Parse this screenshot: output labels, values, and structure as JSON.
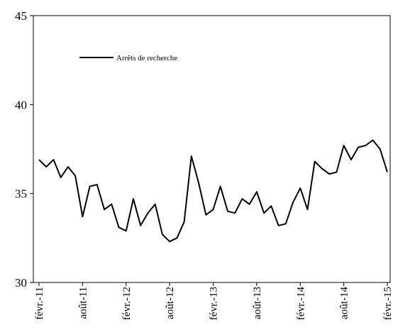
{
  "chart_data": {
    "type": "line",
    "title": "",
    "xlabel": "",
    "ylabel": "",
    "ylim": [
      30,
      45
    ],
    "yticks": [
      "30",
      "35",
      "40",
      "45"
    ],
    "grid": false,
    "legend_position": "top-left",
    "x_tick_labels": [
      "févr.-11",
      "août-11",
      "févr.-12",
      "août-12",
      "févr.-13",
      "août-13",
      "févr.-14",
      "août-14",
      "févr.-15"
    ],
    "x_tick_months": [
      "2011-02",
      "2011-08",
      "2012-02",
      "2012-08",
      "2013-02",
      "2013-08",
      "2014-02",
      "2014-08",
      "2015-02"
    ],
    "x": [
      "2011-02",
      "2011-03",
      "2011-04",
      "2011-05",
      "2011-06",
      "2011-07",
      "2011-08",
      "2011-09",
      "2011-10",
      "2011-11",
      "2011-12",
      "2012-01",
      "2012-02",
      "2012-03",
      "2012-04",
      "2012-05",
      "2012-06",
      "2012-07",
      "2012-08",
      "2012-09",
      "2012-10",
      "2012-11",
      "2012-12",
      "2013-01",
      "2013-02",
      "2013-03",
      "2013-04",
      "2013-05",
      "2013-06",
      "2013-07",
      "2013-08",
      "2013-09",
      "2013-10",
      "2013-11",
      "2013-12",
      "2014-01",
      "2014-02",
      "2014-03",
      "2014-04",
      "2014-05",
      "2014-06",
      "2014-07",
      "2014-08",
      "2014-09",
      "2014-10",
      "2014-11",
      "2014-12",
      "2015-01",
      "2015-02"
    ],
    "series": [
      {
        "name": "Arrêts de recherche",
        "color": "#000000",
        "values": [
          36.9,
          36.5,
          36.9,
          35.9,
          36.5,
          36.0,
          33.7,
          35.4,
          35.5,
          34.1,
          34.4,
          33.1,
          32.9,
          34.7,
          33.2,
          33.9,
          34.4,
          32.7,
          32.3,
          32.5,
          33.4,
          37.1,
          35.6,
          33.8,
          34.1,
          35.4,
          34.0,
          33.9,
          34.7,
          34.4,
          35.1,
          33.9,
          34.3,
          33.2,
          33.3,
          34.5,
          35.3,
          34.1,
          36.8,
          36.4,
          36.1,
          36.2,
          37.7,
          36.9,
          37.6,
          37.7,
          38.0,
          37.5,
          36.2
        ]
      }
    ]
  }
}
